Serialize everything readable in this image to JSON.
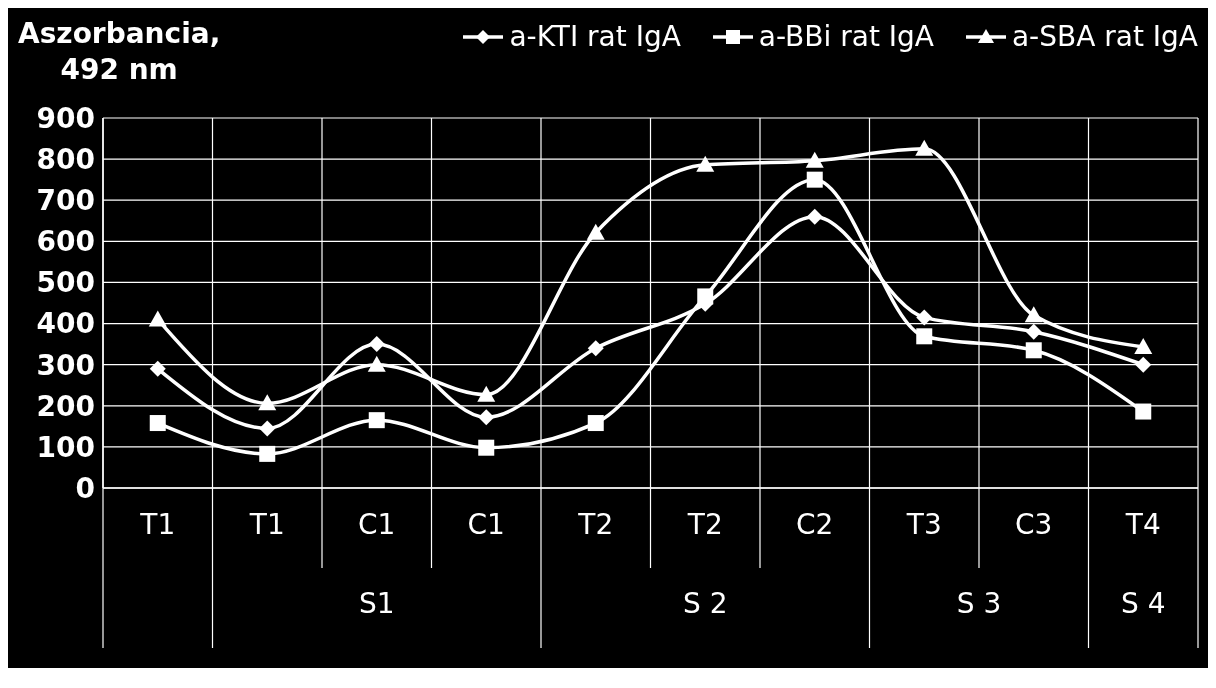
{
  "chart_data": {
    "type": "line",
    "ylabel": "Aszorbancia,\n492 nm",
    "categories": [
      "T1",
      "T1",
      "C1",
      "C1",
      "T2",
      "T2",
      "C2",
      "T3",
      "C3",
      "T4"
    ],
    "series": [
      {
        "name": "a-KTI rat IgA",
        "color": "#ffffff",
        "marker": "diamond",
        "values": [
          290,
          145,
          350,
          172,
          340,
          448,
          660,
          415,
          380,
          300
        ]
      },
      {
        "name": "a-BBi rat IgA",
        "color": "#ffffff",
        "marker": "square",
        "values": [
          158,
          83,
          165,
          98,
          158,
          466,
          750,
          369,
          335,
          186
        ]
      },
      {
        "name": "a-SBA rat IgA",
        "color": "#ffffff",
        "marker": "triangle",
        "values": [
          410,
          206,
          300,
          227,
          621,
          786,
          796,
          825,
          420,
          343
        ]
      }
    ],
    "annotations": [
      "S1",
      "S 2",
      "S 3",
      "S 4"
    ],
    "ylim": [
      0,
      900
    ],
    "yticks": [
      0,
      100,
      200,
      300,
      400,
      500,
      600,
      700,
      800,
      900
    ],
    "grid": true,
    "legend": "top right"
  }
}
